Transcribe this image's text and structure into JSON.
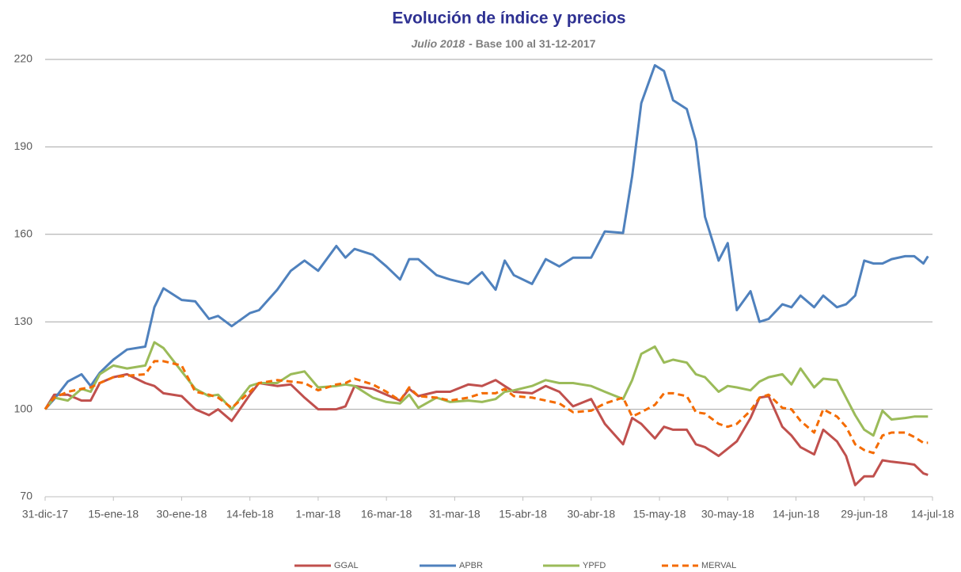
{
  "chart_data": {
    "type": "line",
    "title": "Evolución de índice y precios",
    "subtitle": [
      "Julio 2018",
      "- Base 100 al 31-12-2017"
    ],
    "x": [
      "2017-12-31",
      "2018-01-02",
      "2018-01-05",
      "2018-01-08",
      "2018-01-10",
      "2018-01-12",
      "2018-01-15",
      "2018-01-18",
      "2018-01-22",
      "2018-01-24",
      "2018-01-26",
      "2018-01-30",
      "2018-02-02",
      "2018-02-05",
      "2018-02-07",
      "2018-02-10",
      "2018-02-14",
      "2018-02-16",
      "2018-02-20",
      "2018-02-23",
      "2018-02-26",
      "2018-03-01",
      "2018-03-05",
      "2018-03-07",
      "2018-03-09",
      "2018-03-13",
      "2018-03-16",
      "2018-03-19",
      "2018-03-21",
      "2018-03-23",
      "2018-03-27",
      "2018-03-30",
      "2018-04-03",
      "2018-04-06",
      "2018-04-09",
      "2018-04-11",
      "2018-04-13",
      "2018-04-17",
      "2018-04-20",
      "2018-04-23",
      "2018-04-26",
      "2018-04-30",
      "2018-05-03",
      "2018-05-07",
      "2018-05-09",
      "2018-05-11",
      "2018-05-14",
      "2018-05-16",
      "2018-05-18",
      "2018-05-21",
      "2018-05-23",
      "2018-05-25",
      "2018-05-28",
      "2018-05-30",
      "2018-06-01",
      "2018-06-04",
      "2018-06-06",
      "2018-06-08",
      "2018-06-11",
      "2018-06-13",
      "2018-06-15",
      "2018-06-18",
      "2018-06-20",
      "2018-06-23",
      "2018-06-25",
      "2018-06-27",
      "2018-06-29",
      "2018-07-01",
      "2018-07-03",
      "2018-07-05",
      "2018-07-08",
      "2018-07-10",
      "2018-07-12",
      "2018-07-13"
    ],
    "series": [
      {
        "name": "GGAL",
        "color": "#c0504d",
        "dashed": false,
        "values": [
          100,
          105,
          105,
          103,
          103,
          109,
          111,
          112,
          109,
          108,
          105.5,
          104.5,
          100,
          98,
          100,
          96,
          105,
          109,
          108,
          108.5,
          104,
          100,
          100,
          101,
          108,
          107,
          105,
          103,
          107,
          104.5,
          106,
          106,
          108.5,
          108,
          110,
          108,
          106,
          105.5,
          108,
          106,
          101,
          103.5,
          95,
          88,
          97,
          95,
          90,
          94,
          93,
          93,
          88,
          87,
          84,
          86.5,
          89,
          97,
          104,
          104.5,
          94,
          91,
          87,
          84.5,
          93,
          89,
          84,
          74,
          77,
          77,
          82.5,
          82,
          81.5,
          81,
          78,
          77.5
        ]
      },
      {
        "name": "APBR",
        "color": "#4f81bd",
        "dashed": false,
        "values": [
          100,
          103.5,
          109.5,
          112,
          108,
          112.5,
          117,
          120.5,
          121.5,
          135,
          141.5,
          137.5,
          137,
          131,
          132,
          128.5,
          133,
          134,
          141,
          147.5,
          151,
          147.5,
          156,
          152,
          155,
          153,
          149,
          144.5,
          151.5,
          151.5,
          146,
          144.5,
          143,
          147,
          141,
          151,
          146,
          143,
          151.5,
          149,
          152,
          152,
          161,
          160.5,
          180,
          205,
          218,
          216,
          206,
          203,
          192,
          166,
          151,
          157,
          134,
          140.5,
          130,
          131,
          136,
          135,
          139,
          135,
          139,
          135,
          136,
          139,
          151,
          150,
          150,
          151.5,
          152.5,
          152.5,
          150,
          152.5
        ]
      },
      {
        "name": "YPFD",
        "color": "#9bbb59",
        "dashed": false,
        "values": [
          100,
          104,
          103,
          107,
          106,
          112,
          115,
          114,
          115,
          123,
          121,
          113,
          107,
          104.5,
          105,
          100,
          108,
          109,
          109,
          112,
          113,
          107.5,
          108,
          108.5,
          108,
          104,
          102.5,
          102,
          105,
          100.5,
          104,
          102.5,
          103,
          102.5,
          103.5,
          106,
          106.5,
          108,
          110,
          109,
          109,
          108,
          106,
          103.5,
          110,
          119,
          121.5,
          116,
          117,
          116,
          112,
          111,
          106,
          108,
          107.5,
          106.5,
          109.5,
          111,
          112,
          108.5,
          114,
          107.5,
          110.5,
          110,
          104,
          98,
          93,
          91,
          99.5,
          96.5,
          97,
          97.5,
          97.5,
          97.5
        ]
      },
      {
        "name": "MERVAL",
        "color": "#f46b00",
        "dashed": true,
        "values": [
          100,
          104,
          106,
          107,
          107.5,
          109,
          111,
          111.5,
          112,
          116.5,
          116.5,
          115,
          106,
          105,
          104,
          100.5,
          106,
          109,
          110,
          109.5,
          109,
          106.5,
          108.5,
          109,
          110.5,
          108.5,
          106,
          103,
          107.5,
          104.5,
          104,
          103,
          104,
          105.5,
          105.5,
          107,
          104.5,
          104,
          103,
          102,
          99,
          99.5,
          102,
          104,
          97.5,
          99,
          101.5,
          105.5,
          105.5,
          104.5,
          99,
          98.5,
          95,
          94,
          95,
          99.5,
          104,
          105,
          100.5,
          100,
          96,
          92,
          100,
          97.5,
          94,
          88,
          86,
          85,
          91,
          92,
          92,
          90.5,
          88.5,
          88.5
        ]
      }
    ],
    "xlim": [
      "2017-12-31",
      "2018-07-14"
    ],
    "xticks": [
      {
        "value": "2017-12-31",
        "label": "31-dic-17"
      },
      {
        "value": "2018-01-15",
        "label": "15-ene-18"
      },
      {
        "value": "2018-01-30",
        "label": "30-ene-18"
      },
      {
        "value": "2018-02-14",
        "label": "14-feb-18"
      },
      {
        "value": "2018-03-01",
        "label": "1-mar-18"
      },
      {
        "value": "2018-03-16",
        "label": "16-mar-18"
      },
      {
        "value": "2018-03-31",
        "label": "31-mar-18"
      },
      {
        "value": "2018-04-15",
        "label": "15-abr-18"
      },
      {
        "value": "2018-04-30",
        "label": "30-abr-18"
      },
      {
        "value": "2018-05-15",
        "label": "15-may-18"
      },
      {
        "value": "2018-05-30",
        "label": "30-may-18"
      },
      {
        "value": "2018-06-14",
        "label": "14-jun-18"
      },
      {
        "value": "2018-06-29",
        "label": "29-jun-18"
      },
      {
        "value": "2018-07-14",
        "label": "14-jul-18"
      }
    ],
    "ylim": [
      70,
      220
    ],
    "yticks": [
      70,
      100,
      130,
      160,
      190,
      220
    ],
    "grid": true,
    "legend": "bottom"
  }
}
